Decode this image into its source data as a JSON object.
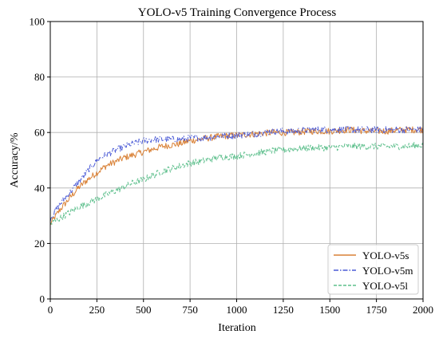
{
  "chart_data": {
    "type": "line",
    "title": "YOLO-v5 Training Convergence Process",
    "xlabel": "Iteration",
    "ylabel": "Accuracy/%",
    "xlim": [
      0,
      2000
    ],
    "ylim": [
      0,
      100
    ],
    "xticks": [
      0,
      250,
      500,
      750,
      1000,
      1250,
      1500,
      1750,
      2000
    ],
    "yticks": [
      0,
      20,
      40,
      60,
      80,
      100
    ],
    "grid": true,
    "legend_position": "bottom-right",
    "series": [
      {
        "name": "YOLO-v5s",
        "color": "#d98136",
        "line_style": "solid",
        "anchors": [
          [
            0,
            27
          ],
          [
            50,
            32
          ],
          [
            100,
            36
          ],
          [
            150,
            40
          ],
          [
            200,
            43
          ],
          [
            250,
            45.5
          ],
          [
            300,
            48
          ],
          [
            350,
            49.5
          ],
          [
            400,
            51
          ],
          [
            450,
            52
          ],
          [
            500,
            53
          ],
          [
            550,
            54
          ],
          [
            600,
            55
          ],
          [
            650,
            55.5
          ],
          [
            700,
            56
          ],
          [
            750,
            57
          ],
          [
            800,
            57.5
          ],
          [
            900,
            58.5
          ],
          [
            1000,
            59
          ],
          [
            1100,
            59.5
          ],
          [
            1200,
            60
          ],
          [
            1300,
            60
          ],
          [
            1400,
            60.5
          ],
          [
            1500,
            60.5
          ],
          [
            1600,
            61
          ],
          [
            1700,
            60.5
          ],
          [
            1800,
            60.5
          ],
          [
            1900,
            61
          ],
          [
            2000,
            61
          ]
        ]
      },
      {
        "name": "YOLO-v5m",
        "color": "#4a5ad6",
        "line_style": "dashdot",
        "anchors": [
          [
            0,
            29
          ],
          [
            50,
            34
          ],
          [
            100,
            38
          ],
          [
            150,
            42
          ],
          [
            200,
            46
          ],
          [
            250,
            50
          ],
          [
            300,
            52
          ],
          [
            350,
            53.5
          ],
          [
            400,
            55
          ],
          [
            450,
            56
          ],
          [
            500,
            57
          ],
          [
            550,
            57.5
          ],
          [
            600,
            57.5
          ],
          [
            650,
            57.5
          ],
          [
            700,
            57.5
          ],
          [
            750,
            58
          ],
          [
            800,
            58
          ],
          [
            900,
            58.5
          ],
          [
            1000,
            59
          ],
          [
            1100,
            59.5
          ],
          [
            1200,
            60.5
          ],
          [
            1300,
            60.5
          ],
          [
            1400,
            61
          ],
          [
            1500,
            61
          ],
          [
            1600,
            61
          ],
          [
            1700,
            61
          ],
          [
            1800,
            61
          ],
          [
            1900,
            61
          ],
          [
            2000,
            61
          ]
        ]
      },
      {
        "name": "YOLO-v5l",
        "color": "#5dbf8c",
        "line_style": "dashed",
        "anchors": [
          [
            0,
            27
          ],
          [
            50,
            29
          ],
          [
            100,
            31
          ],
          [
            150,
            33
          ],
          [
            200,
            34.5
          ],
          [
            250,
            36
          ],
          [
            300,
            37.5
          ],
          [
            350,
            39
          ],
          [
            400,
            40.5
          ],
          [
            450,
            42
          ],
          [
            500,
            43
          ],
          [
            550,
            44.5
          ],
          [
            600,
            46
          ],
          [
            650,
            47
          ],
          [
            700,
            48
          ],
          [
            750,
            49
          ],
          [
            800,
            49.5
          ],
          [
            900,
            51
          ],
          [
            1000,
            51.5
          ],
          [
            1100,
            52.5
          ],
          [
            1200,
            53.5
          ],
          [
            1300,
            54
          ],
          [
            1400,
            54.5
          ],
          [
            1500,
            54.5
          ],
          [
            1600,
            55
          ],
          [
            1700,
            55
          ],
          [
            1800,
            55
          ],
          [
            1900,
            55
          ],
          [
            2000,
            55.5
          ]
        ]
      }
    ]
  }
}
